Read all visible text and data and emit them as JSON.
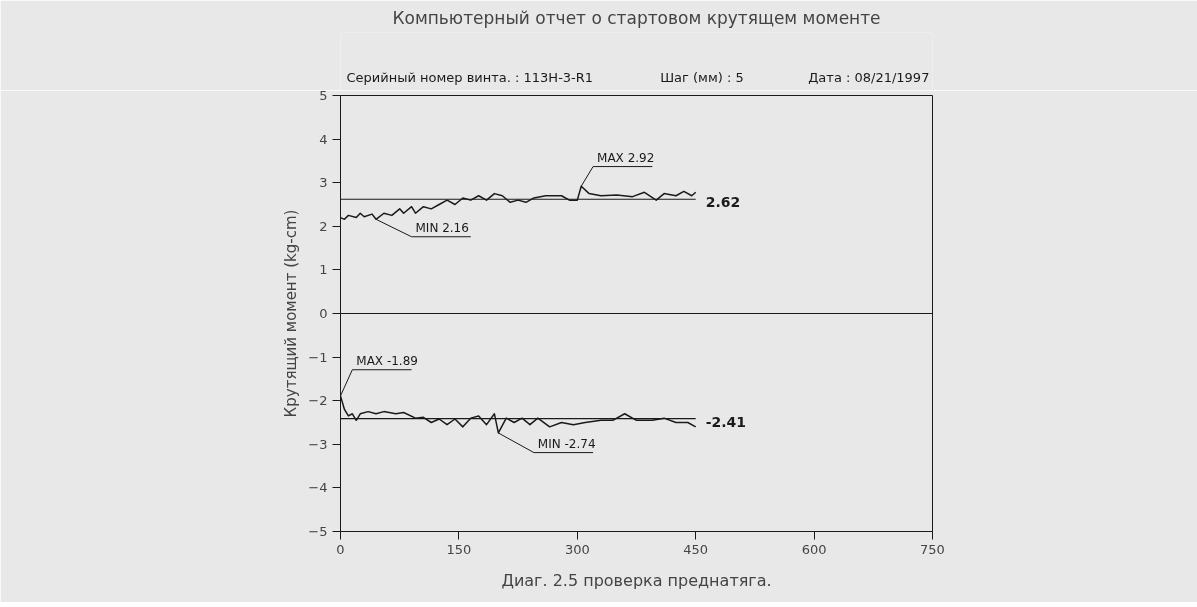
{
  "chart_data": {
    "type": "line",
    "title": "Компьютерный отчет о стартовом крутящем моменте",
    "ylabel": "Крутящий момент (kg-cm)",
    "xlim": [
      0,
      750
    ],
    "xticks": [
      0,
      150,
      300,
      450,
      600,
      750
    ],
    "ylim": [
      -5,
      5
    ],
    "yticks": [
      -5,
      -4,
      -3,
      -2,
      -1,
      0,
      1,
      2,
      3,
      4,
      5
    ],
    "grid": false,
    "line_style": "solid",
    "marker": "none",
    "series": [
      {
        "color": "#1a1a1a",
        "x": [
          0,
          5,
          10,
          20,
          25,
          30,
          40,
          45,
          55,
          65,
          75,
          80,
          90,
          95,
          105,
          115,
          125,
          135,
          145,
          155,
          165,
          175,
          185,
          195,
          205,
          215,
          225,
          235,
          245,
          260,
          280,
          290,
          300,
          305,
          315,
          330,
          350,
          370,
          385,
          400,
          410,
          425,
          435,
          445,
          450
        ],
        "values": [
          2.2,
          2.16,
          2.25,
          2.2,
          2.3,
          2.22,
          2.28,
          2.16,
          2.3,
          2.25,
          2.4,
          2.3,
          2.45,
          2.3,
          2.45,
          2.4,
          2.5,
          2.6,
          2.5,
          2.65,
          2.6,
          2.7,
          2.6,
          2.75,
          2.7,
          2.55,
          2.6,
          2.55,
          2.65,
          2.7,
          2.7,
          2.6,
          2.6,
          2.92,
          2.75,
          2.7,
          2.72,
          2.68,
          2.78,
          2.6,
          2.75,
          2.7,
          2.8,
          2.7,
          2.78
        ]
      },
      {
        "color": "#1a1a1a",
        "x": [
          0,
          5,
          10,
          15,
          20,
          25,
          35,
          45,
          55,
          70,
          80,
          95,
          105,
          115,
          125,
          135,
          145,
          155,
          165,
          175,
          185,
          195,
          200,
          210,
          220,
          230,
          240,
          250,
          265,
          280,
          295,
          310,
          330,
          345,
          360,
          375,
          395,
          410,
          425,
          440,
          450
        ],
        "values": [
          -1.89,
          -2.2,
          -2.35,
          -2.3,
          -2.45,
          -2.3,
          -2.25,
          -2.3,
          -2.25,
          -2.3,
          -2.27,
          -2.4,
          -2.38,
          -2.5,
          -2.42,
          -2.55,
          -2.42,
          -2.6,
          -2.4,
          -2.35,
          -2.55,
          -2.3,
          -2.74,
          -2.4,
          -2.5,
          -2.4,
          -2.55,
          -2.4,
          -2.6,
          -2.5,
          -2.55,
          -2.5,
          -2.45,
          -2.45,
          -2.3,
          -2.45,
          -2.45,
          -2.4,
          -2.5,
          -2.5,
          -2.6
        ]
      }
    ],
    "ref_lines": [
      {
        "axis": "y",
        "value": 0,
        "color": "#1a1a1a"
      },
      {
        "axis": "y",
        "value": 2.62,
        "label": "2.62",
        "color": "#1a1a1a"
      },
      {
        "axis": "y",
        "value": -2.41,
        "label": "-2.41",
        "color": "#1a1a1a"
      }
    ],
    "annotations": [
      "Серийный номер винта. : 113H-3-R1",
      "Шаг (мм) : 5",
      "Дата : 08/21/1997",
      "Диаг. 2.5 проверка преднатяга.",
      {
        "text": "MAX 2.92",
        "x": 305,
        "y": 2.92
      },
      {
        "text": "MIN 2.16",
        "x": 45,
        "y": 2.16
      },
      {
        "text": "MAX -1.89",
        "x": 0,
        "y": -1.89
      },
      {
        "text": "MIN -2.74",
        "x": 200,
        "y": -2.74
      }
    ]
  }
}
